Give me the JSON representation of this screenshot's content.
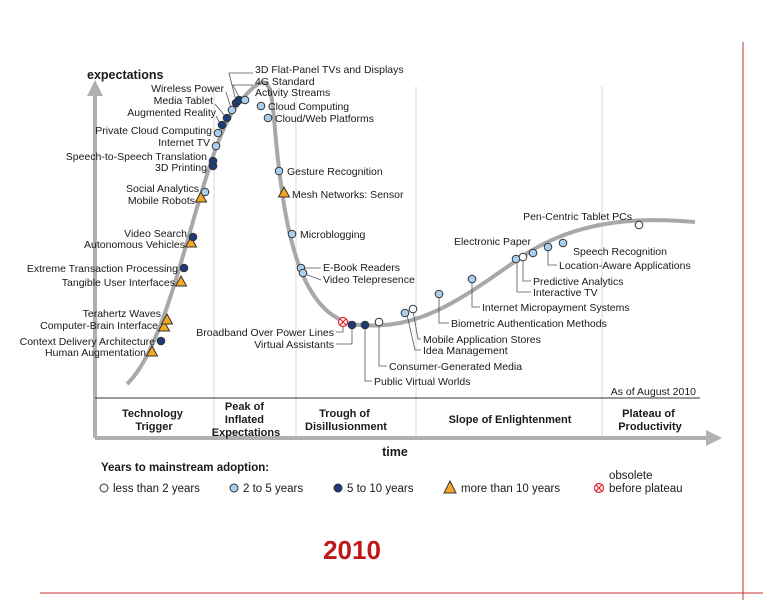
{
  "axes": {
    "y_label": "expectations",
    "x_label": "time"
  },
  "phases": [
    {
      "lines": [
        "Technology",
        "Trigger"
      ]
    },
    {
      "lines": [
        "Peak of",
        "Inflated",
        "Expectations"
      ]
    },
    {
      "lines": [
        "Trough of",
        "Disillusionment"
      ]
    },
    {
      "lines": [
        "Slope of Enlightenment"
      ]
    },
    {
      "lines": [
        "Plateau of",
        "Productivity"
      ]
    }
  ],
  "as_of": "As of August 2010",
  "legend": {
    "title": "Years to mainstream adoption:",
    "items": [
      {
        "key": "lt2",
        "label": "less than 2 years"
      },
      {
        "key": "2to5",
        "label": "2 to 5 years"
      },
      {
        "key": "5to10",
        "label": "5 to 10 years"
      },
      {
        "key": "gt10",
        "label": "more than 10 years"
      },
      {
        "key": "obs",
        "label_lines": [
          "obsolete",
          "before plateau"
        ]
      }
    ]
  },
  "colors": {
    "curve": "#a8a8a8",
    "lt2": "#ffffff",
    "2to5": "#a9cff0",
    "5to10": "#1f3a78",
    "gt10": "#f5a623",
    "obs": "#e0262b",
    "year": "#c01818",
    "frame": "#c63030"
  },
  "technologies": [
    {
      "name": "Human Augmentation",
      "category": "gt10"
    },
    {
      "name": "Context Delivery Architecture",
      "category": "5to10"
    },
    {
      "name": "Computer-Brain Interface",
      "category": "gt10"
    },
    {
      "name": "Terahertz Waves",
      "category": "gt10"
    },
    {
      "name": "Tangible User Interfaces",
      "category": "gt10"
    },
    {
      "name": "Extreme Transaction Processing",
      "category": "5to10"
    },
    {
      "name": "Autonomous Vehicles",
      "category": "gt10"
    },
    {
      "name": "Video Search",
      "category": "5to10"
    },
    {
      "name": "Mobile Robots",
      "category": "gt10"
    },
    {
      "name": "Social Analytics",
      "category": "2to5"
    },
    {
      "name": "3D Printing",
      "category": "5to10"
    },
    {
      "name": "Speech-to-Speech Translation",
      "category": "5to10"
    },
    {
      "name": "Internet TV",
      "category": "2to5"
    },
    {
      "name": "Private Cloud Computing",
      "category": "2to5"
    },
    {
      "name": "Augmented Reality",
      "category": "5to10"
    },
    {
      "name": "Media Tablet",
      "category": "5to10"
    },
    {
      "name": "Wireless Power",
      "category": "2to5"
    },
    {
      "name": "3D Flat-Panel TVs and Displays",
      "category": "5to10"
    },
    {
      "name": "4G Standard",
      "category": "5to10"
    },
    {
      "name": "Activity Streams",
      "category": "2to5"
    },
    {
      "name": "Cloud Computing",
      "category": "2to5"
    },
    {
      "name": "Cloud/Web Platforms",
      "category": "2to5"
    },
    {
      "name": "Gesture Recognition",
      "category": "2to5"
    },
    {
      "name": "Mesh Networks: Sensor",
      "category": "gt10"
    },
    {
      "name": "Microblogging",
      "category": "2to5"
    },
    {
      "name": "E-Book Readers",
      "category": "2to5"
    },
    {
      "name": "Video Telepresence",
      "category": "2to5"
    },
    {
      "name": "Broadband Over Power Lines",
      "category": "obs"
    },
    {
      "name": "Virtual Assistants",
      "category": "5to10"
    },
    {
      "name": "Public Virtual Worlds",
      "category": "5to10"
    },
    {
      "name": "Consumer-Generated Media",
      "category": "lt2"
    },
    {
      "name": "Idea Management",
      "category": "2to5"
    },
    {
      "name": "Mobile Application Stores",
      "category": "lt2"
    },
    {
      "name": "Biometric Authentication Methods",
      "category": "2to5"
    },
    {
      "name": "Internet Micropayment Systems",
      "category": "2to5"
    },
    {
      "name": "Interactive TV",
      "category": "2to5"
    },
    {
      "name": "Predictive Analytics",
      "category": "lt2"
    },
    {
      "name": "Location-Aware Applications",
      "category": "2to5"
    },
    {
      "name": "Electronic Paper",
      "category": "2to5"
    },
    {
      "name": "Speech Recognition",
      "category": "2to5"
    },
    {
      "name": "Pen-Centric Tablet PCs",
      "category": "lt2"
    }
  ],
  "year": "2010"
}
